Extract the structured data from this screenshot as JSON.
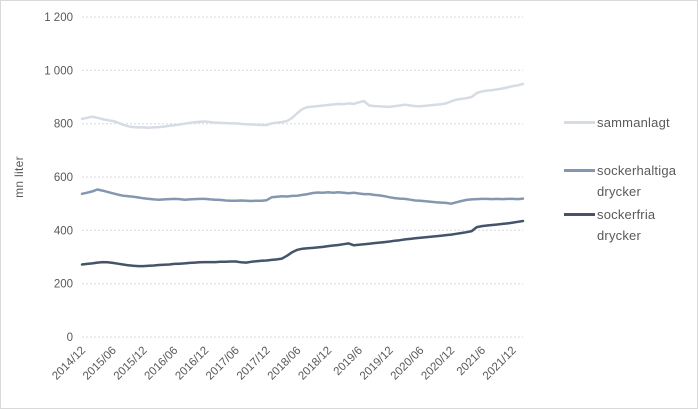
{
  "window": {
    "background": "#FFFFFF",
    "border_color": "#D9D9D9"
  },
  "chart_data": {
    "type": "line",
    "title": "",
    "xlabel": "",
    "ylabel": "mn liter",
    "ylim": [
      0,
      1200
    ],
    "grid": true,
    "gridline_color": "#D9D9D9",
    "tick_label_color": "#595959",
    "legend_position": "right",
    "ytick_values": [
      0,
      200,
      400,
      600,
      800,
      1000,
      1200
    ],
    "ytick_labels": [
      "0",
      "200",
      "400",
      "600",
      "800",
      "1 000",
      "1 200"
    ],
    "x_tick_labels": [
      "2014/12",
      "2015/06",
      "2015/12",
      "2016/06",
      "2016/12",
      "2017/06",
      "2017/12",
      "2018/06",
      "2018/12",
      "2019/6",
      "2019/12",
      "2020/06",
      "2020/12",
      "2021/6",
      "2021/12"
    ],
    "x_points_per_tick": 6,
    "n_points": 87,
    "x_range_note": "monthly points, 2014/12 through 2022/02",
    "series": [
      {
        "name": "sammanlagt",
        "color": "#D6DCE4",
        "values": [
          818,
          822,
          826,
          822,
          817,
          813,
          810,
          804,
          796,
          790,
          787,
          786,
          786,
          785,
          786,
          787,
          789,
          792,
          794,
          797,
          800,
          803,
          805,
          807,
          808,
          806,
          804,
          803,
          802,
          801,
          801,
          799,
          798,
          797,
          796,
          795,
          795,
          801,
          804,
          806,
          810,
          822,
          840,
          855,
          862,
          864,
          866,
          868,
          870,
          872,
          874,
          873,
          876,
          874,
          880,
          885,
          868,
          866,
          865,
          864,
          863,
          866,
          868,
          871,
          868,
          866,
          865,
          867,
          869,
          871,
          873,
          876,
          884,
          890,
          893,
          896,
          900,
          915,
          921,
          924,
          926,
          929,
          932,
          936,
          941,
          944,
          949
        ]
      },
      {
        "name": "sockerhaltiga drycker",
        "color": "#8497B0",
        "values": [
          537,
          541,
          546,
          553,
          549,
          544,
          539,
          534,
          530,
          528,
          526,
          523,
          520,
          518,
          516,
          515,
          516,
          517,
          518,
          517,
          515,
          516,
          517,
          518,
          518,
          516,
          515,
          514,
          512,
          511,
          511,
          512,
          511,
          510,
          511,
          511,
          513,
          524,
          526,
          528,
          527,
          529,
          530,
          533,
          536,
          540,
          542,
          541,
          543,
          541,
          543,
          541,
          539,
          541,
          538,
          536,
          536,
          533,
          531,
          528,
          524,
          521,
          519,
          518,
          515,
          512,
          511,
          509,
          507,
          505,
          504,
          503,
          500,
          505,
          510,
          514,
          516,
          517,
          518,
          518,
          517,
          518,
          517,
          518,
          518,
          517,
          519
        ]
      },
      {
        "name": "sockerfria drycker",
        "color": "#44546A",
        "values": [
          272,
          274,
          276,
          279,
          281,
          280,
          278,
          275,
          272,
          269,
          267,
          266,
          266,
          267,
          268,
          270,
          271,
          272,
          274,
          275,
          276,
          278,
          279,
          280,
          281,
          281,
          281,
          282,
          282,
          283,
          283,
          280,
          279,
          282,
          284,
          286,
          287,
          289,
          291,
          294,
          305,
          318,
          327,
          331,
          333,
          334,
          336,
          338,
          341,
          343,
          345,
          348,
          351,
          344,
          346,
          348,
          350,
          352,
          354,
          356,
          358,
          361,
          363,
          366,
          368,
          370,
          372,
          374,
          376,
          378,
          380,
          382,
          384,
          387,
          390,
          393,
          397,
          412,
          416,
          418,
          420,
          422,
          424,
          426,
          429,
          432,
          435
        ]
      }
    ]
  }
}
